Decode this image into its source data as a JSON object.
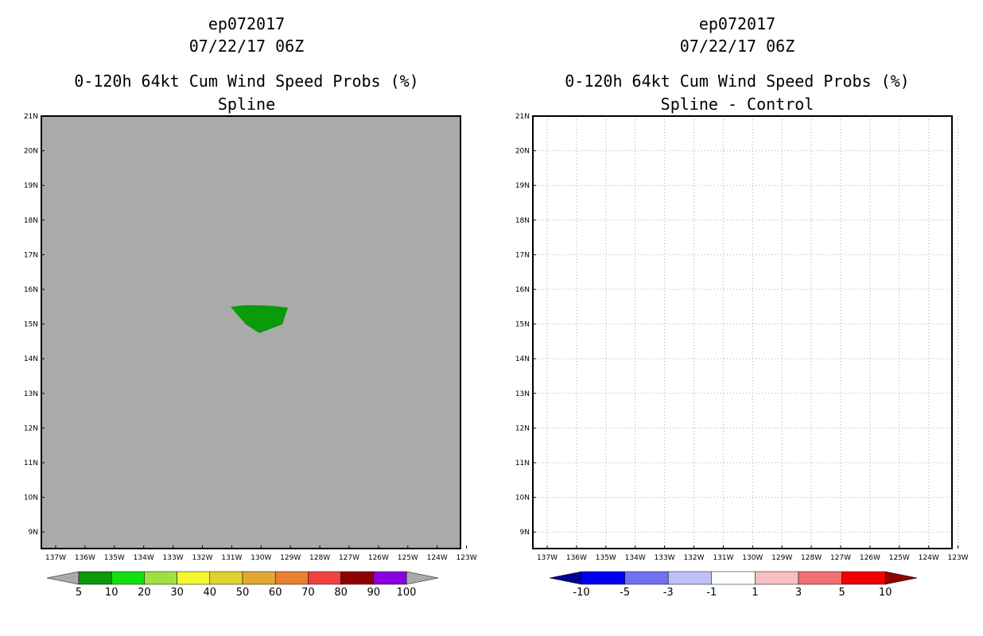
{
  "left_panel": {
    "storm_id": "ep072017",
    "datetime": "07/22/17 06Z",
    "product": "0-120h 64kt Cum Wind Speed Probs (%)",
    "subtitle": "Spline",
    "background_color": "#aaaaaa",
    "feature_color": "#0a9a0a",
    "colorbar": {
      "colors": [
        "#0a9a0a",
        "#10e010",
        "#a0e040",
        "#f5f530",
        "#e0d030",
        "#e0a830",
        "#e88030",
        "#f04040",
        "#900000",
        "#8c00e0"
      ],
      "labels": [
        "5",
        "10",
        "20",
        "30",
        "40",
        "50",
        "60",
        "70",
        "80",
        "90",
        "100"
      ],
      "under_color": "#aaaaaa",
      "over_color": "#aaaaaa"
    }
  },
  "right_panel": {
    "storm_id": "ep072017",
    "datetime": "07/22/17 06Z",
    "product": "0-120h 64kt Cum Wind Speed Probs (%)",
    "subtitle": "Spline - Control",
    "background_color": "#ffffff",
    "colorbar": {
      "colors": [
        "#0000f0",
        "#7070f0",
        "#c0c0f8",
        "#ffffff",
        "#f8c0c0",
        "#f07070",
        "#f00000"
      ],
      "labels": [
        "-10",
        "-5",
        "-3",
        "-1",
        "1",
        "3",
        "5",
        "10"
      ],
      "under_color": "#000090",
      "over_color": "#900000"
    }
  },
  "axes": {
    "lat_labels": [
      "21N",
      "20N",
      "19N",
      "18N",
      "17N",
      "16N",
      "15N",
      "14N",
      "13N",
      "12N",
      "11N",
      "10N",
      "9N"
    ],
    "lon_labels": [
      "137W",
      "136W",
      "135W",
      "134W",
      "133W",
      "132W",
      "131W",
      "130W",
      "129W",
      "128W",
      "127W",
      "126W",
      "125W",
      "124W",
      "123W"
    ]
  }
}
